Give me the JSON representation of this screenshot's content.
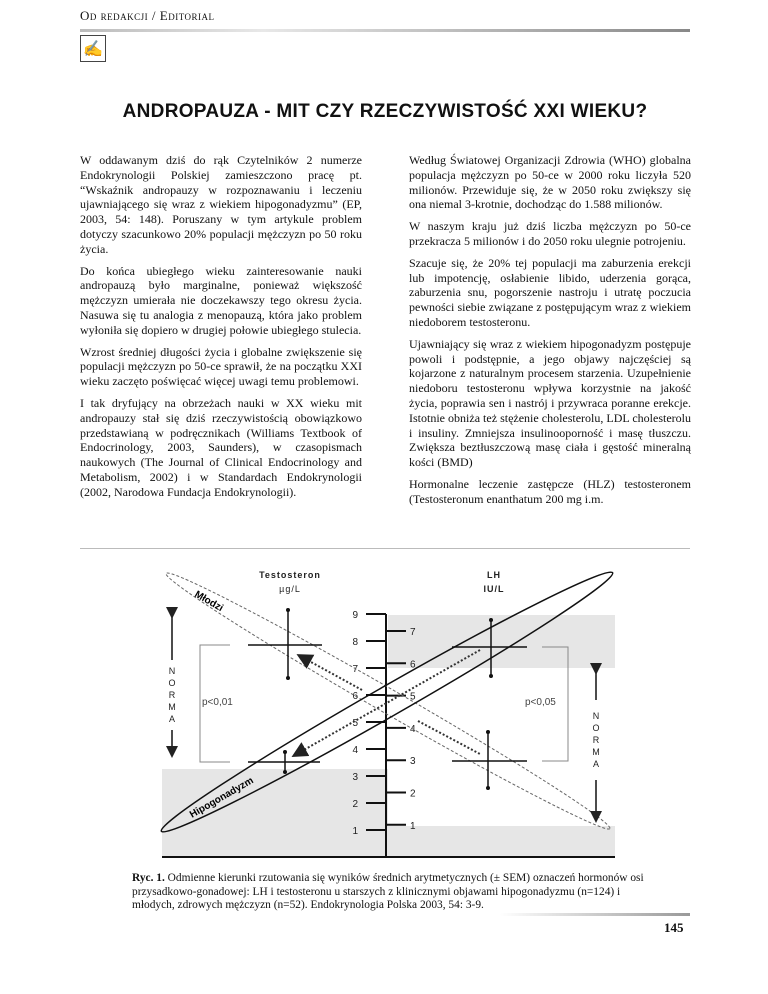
{
  "header": {
    "section": "Od redakcji / Editorial",
    "logo": "editorial-logo"
  },
  "title": "ANDROPAUZA - MIT CZY RZECZYWISTOŚĆ XXI WIEKU?",
  "left_column": [
    "W oddawanym dziś do rąk Czytelników 2 numerze Endokrynologii Polskiej zamieszczono pracę pt. “Wskaźnik andropauzy w rozpoznawaniu i leczeniu ujawniającego się wraz z wiekiem hipogonadyzmu” (EP, 2003, 54: 148). Poruszany w tym artykule problem dotyczy szacunkowo 20% populacji mężczyzn po 50 roku życia.",
    "Do końca ubiegłego wieku zainteresowanie nauki andropauzą było marginalne, ponieważ większość mężczyzn umierała nie doczekawszy tego okresu życia. Nasuwa się tu analogia z menopauzą, która jako problem wyłoniła się dopiero w drugiej połowie ubiegłego stulecia.",
    "Wzrost średniej długości życia i globalne zwiększenie się populacji mężczyzn po 50-ce sprawił, że na początku XXI wieku zaczęto poświęcać więcej uwagi temu problemowi.",
    "I tak dryfujący na obrzeżach nauki w XX wieku mit andropauzy stał się dziś rzeczywistością obowiązkowo przedstawianą w podręcznikach (Williams Textbook of Endocrinology, 2003, Saunders), w czasopismach naukowych (The Journal of Clinical Endocrinology and Metabolism, 2002) i w Standardach Endokrynologii (2002, Narodowa Fundacja Endokrynologii)."
  ],
  "right_column": [
    "Według Światowej Organizacji Zdrowia (WHO) globalna populacja mężczyzn po 50-ce w 2000 roku liczyła 520 milionów. Przewiduje się, że w 2050 roku zwiększy się ona niemal 3-krotnie, dochodząc do 1.588 milionów.",
    "W naszym kraju już dziś liczba mężczyzn po 50-ce przekracza 5 milionów i do 2050 roku ulegnie potrojeniu.",
    "Szacuje się, że 20% tej populacji ma zaburzenia erekcji lub impotencję, osłabienie libido, uderzenia gorąca, zaburzenia snu, pogorszenie nastroju i utratę poczucia pewności siebie związane z postępującym wraz z wiekiem niedoborem testosteronu.",
    "Ujawniający się wraz z wiekiem hipogonadyzm postępuje powoli i podstępnie, a jego objawy najczęściej są kojarzone z naturalnym procesem starzenia. Uzupełnienie niedoboru testosteronu wpływa korzystnie na jakość życia, poprawia sen i nastrój i przywraca poranne erekcje. Istotnie obniża też stężenie cholesterolu, LDL cholesterolu i insuliny. Zmniejsza insulinooporność i masę tłuszczu. Zwiększa beztłuszczową masę ciała i gęstość mineralną kości (BMD)",
    "Hormonalne leczenie zastępcze (HLZ) testosteronem (Testosteronum enanthatum 200 mg i.m."
  ],
  "figure": {
    "left_axis_title": "Testosteron",
    "left_axis_unit": "µg/L",
    "right_axis_title": "LH",
    "right_axis_unit": "IU/L",
    "left_ticks": [
      "9",
      "8",
      "7",
      "6",
      "5",
      "4",
      "3",
      "2",
      "1"
    ],
    "right_ticks": [
      "7",
      "6",
      "5",
      "4",
      "3",
      "2",
      "1"
    ],
    "group_young": "Młodzi",
    "group_hypo": "Hipogonadyzm",
    "p_left": "p<0,01",
    "p_right": "p<0,05",
    "norma": [
      "N",
      "O",
      "R",
      "M",
      "A"
    ]
  },
  "caption": {
    "label": "Ryc. 1.",
    "text": " Odmienne kierunki rzutowania się wyników średnich arytmetycznych (± SEM) oznaczeń hormonów osi przysadkowo-gonadowej: LH i testosteronu u starszych z klinicznymi objawami hipogonadyzmu (n=124) i młodych, zdrowych mężczyzn (n=52). Endokrynologia Polska 2003, 54: 3-9."
  },
  "page_number": "145"
}
